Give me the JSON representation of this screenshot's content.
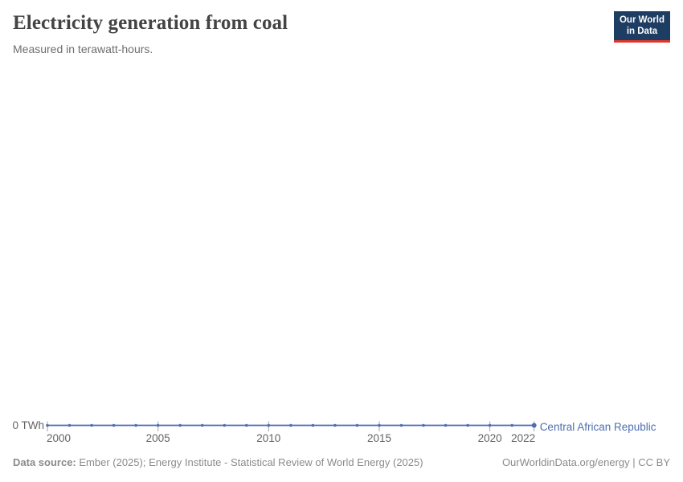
{
  "header": {
    "title": "Electricity generation from coal",
    "subtitle": "Measured in terawatt-hours."
  },
  "logo": {
    "line1": "Our World",
    "line2": "in Data",
    "bg_color": "#1d3d63",
    "bar_color": "#e0362c"
  },
  "chart_data": {
    "type": "line",
    "title": "Electricity generation from coal",
    "subtitle": "Measured in terawatt-hours.",
    "x": [
      2000,
      2001,
      2002,
      2003,
      2004,
      2005,
      2006,
      2007,
      2008,
      2009,
      2010,
      2011,
      2012,
      2013,
      2014,
      2015,
      2016,
      2017,
      2018,
      2019,
      2020,
      2021,
      2022
    ],
    "series": [
      {
        "name": "Central African Republic",
        "color": "#4d6eb0",
        "values": [
          0,
          0,
          0,
          0,
          0,
          0,
          0,
          0,
          0,
          0,
          0,
          0,
          0,
          0,
          0,
          0,
          0,
          0,
          0,
          0,
          0,
          0,
          0
        ]
      }
    ],
    "x_ticks": [
      2000,
      2005,
      2010,
      2015,
      2020,
      2022
    ],
    "y_zero_label": "0 TWh",
    "xlim": [
      2000,
      2022
    ],
    "ylim": [
      0,
      0
    ],
    "grid": false,
    "legend_position": "end-of-line",
    "axis_text_color": "#636363",
    "tick_color": "#a3a3a3"
  },
  "footer": {
    "source_label": "Data source:",
    "source_text": " Ember (2025); Energy Institute - Statistical Review of World Energy (2025)",
    "link_text": "OurWorldinData.org/energy | CC BY"
  }
}
